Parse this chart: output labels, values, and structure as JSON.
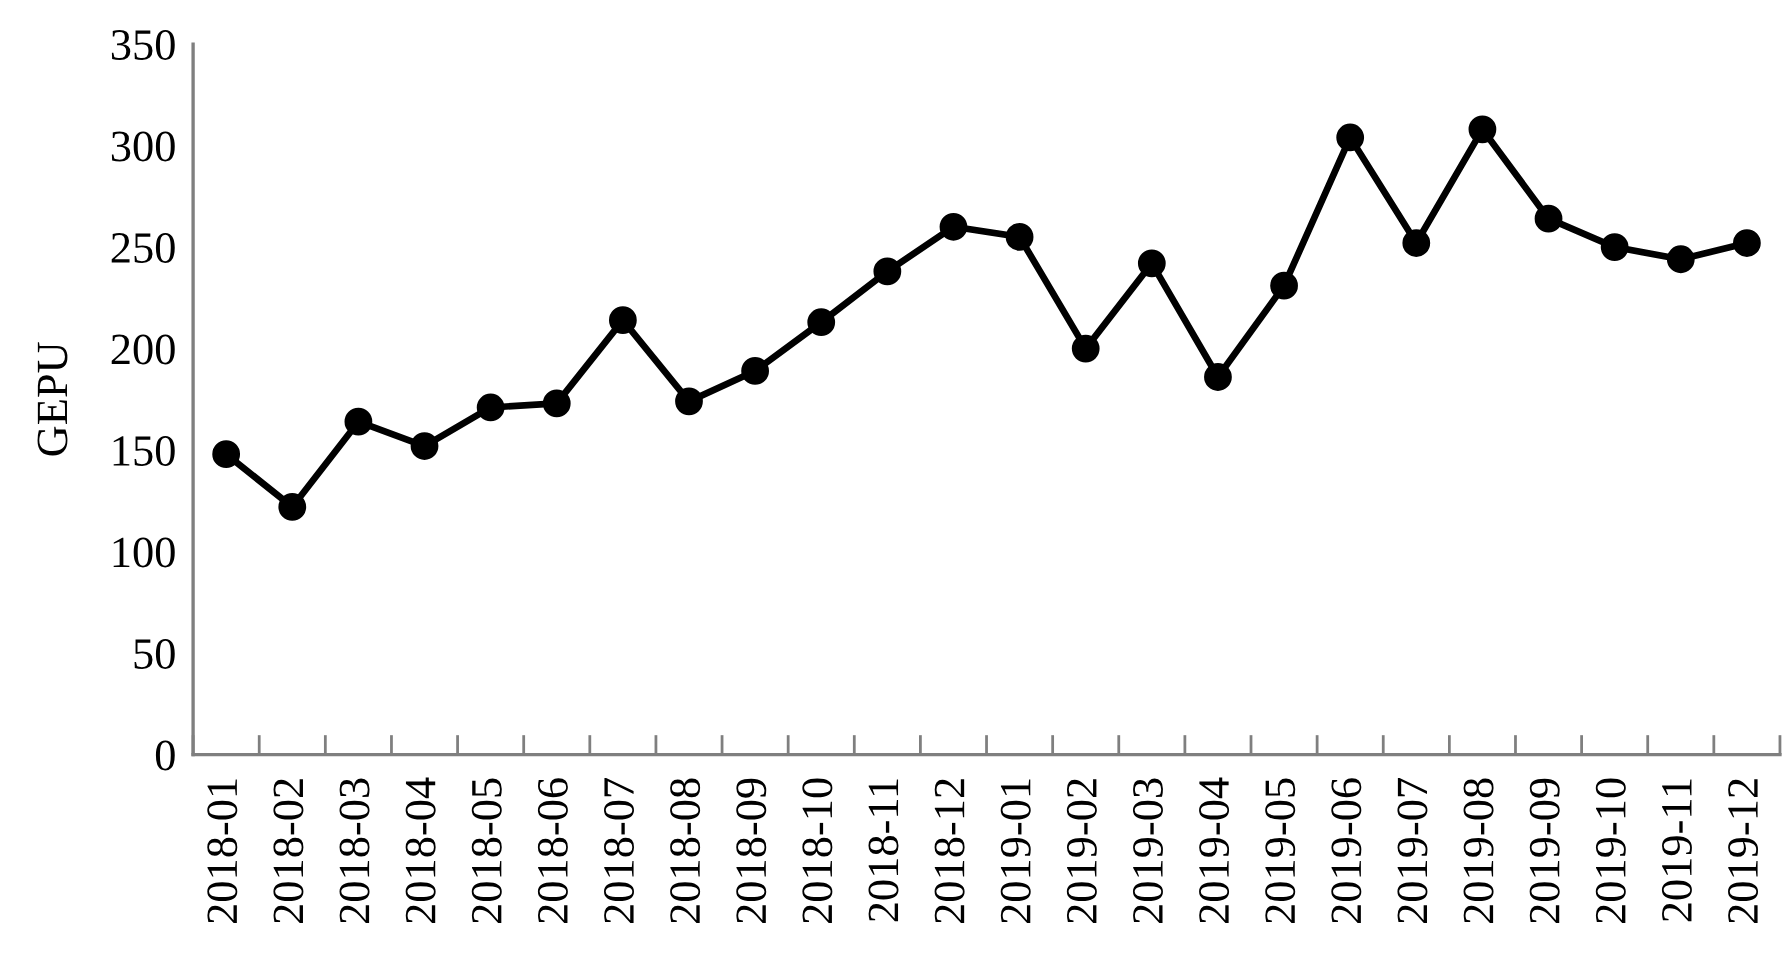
{
  "chart_data": {
    "type": "line",
    "ylabel": "GEPU",
    "categories": [
      "2018-01",
      "2018-02",
      "2018-03",
      "2018-04",
      "2018-05",
      "2018-06",
      "2018-07",
      "2018-08",
      "2018-09",
      "2018-10",
      "2018-11",
      "2018-12",
      "2019-01",
      "2019-02",
      "2019-03",
      "2019-04",
      "2019-05",
      "2019-06",
      "2019-07",
      "2019-08",
      "2019-09",
      "2019-10",
      "2019-11",
      "2019-12"
    ],
    "values": [
      148,
      122,
      164,
      152,
      171,
      173,
      214,
      174,
      189,
      213,
      238,
      260,
      255,
      200,
      242,
      186,
      231,
      304,
      252,
      308,
      264,
      250,
      244,
      252
    ],
    "color": "#000000",
    "marker": "circle",
    "line_style": "solid",
    "ylim": [
      0,
      350
    ],
    "yticks": [
      0,
      50,
      100,
      150,
      200,
      250,
      300,
      350
    ]
  }
}
